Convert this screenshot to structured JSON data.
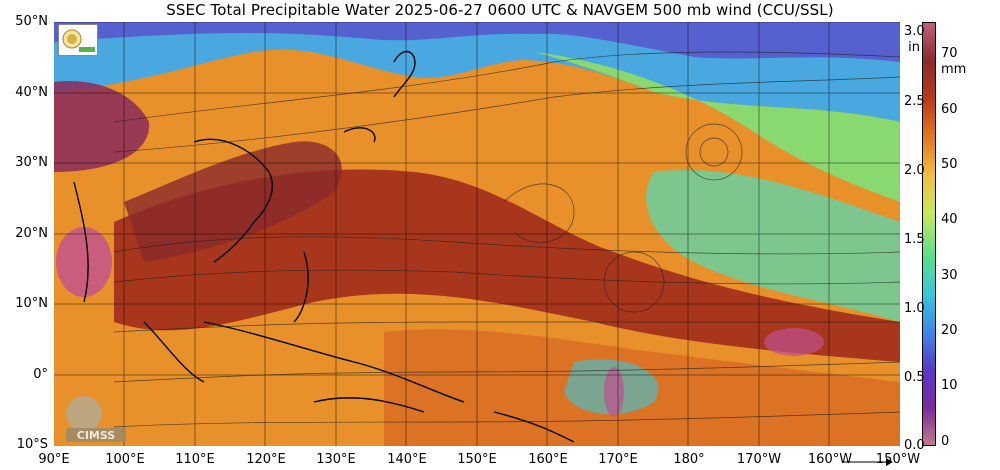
{
  "title": "SSEC Total Precipitable Water  2025-06-27 0600 UTC & NAVGEM 500 mb wind (CCU/SSL)",
  "lat_labels": [
    "50°N",
    "40°N",
    "30°N",
    "20°N",
    "10°N",
    "0°",
    "10°S"
  ],
  "lon_labels": [
    "90°E",
    "100°E",
    "110°E",
    "120°E",
    "130°E",
    "140°E",
    "150°E",
    "160°E",
    "170°E",
    "180°",
    "170°W",
    "160°W",
    "150°W"
  ],
  "colorbar": {
    "inch_unit": "in",
    "inch_ticks": [
      "3.0",
      "2.5",
      "2.0",
      "1.5",
      "1.0",
      "0.5",
      "0.0"
    ],
    "mm_unit": "mm",
    "mm_ticks": [
      "70",
      "60",
      "50",
      "40",
      "30",
      "20",
      "10",
      "0"
    ],
    "colors": [
      "#c07a8a",
      "#7a2a9a",
      "#5a3ac8",
      "#3a8ae8",
      "#3ac8d8",
      "#5ae08a",
      "#c8e85a",
      "#f0c040",
      "#e07820",
      "#b83a18",
      "#8a2a2a",
      "#c06080"
    ]
  },
  "logos": {
    "top_left": "SSEC-logo",
    "bottom_left": "CIMSS"
  }
}
